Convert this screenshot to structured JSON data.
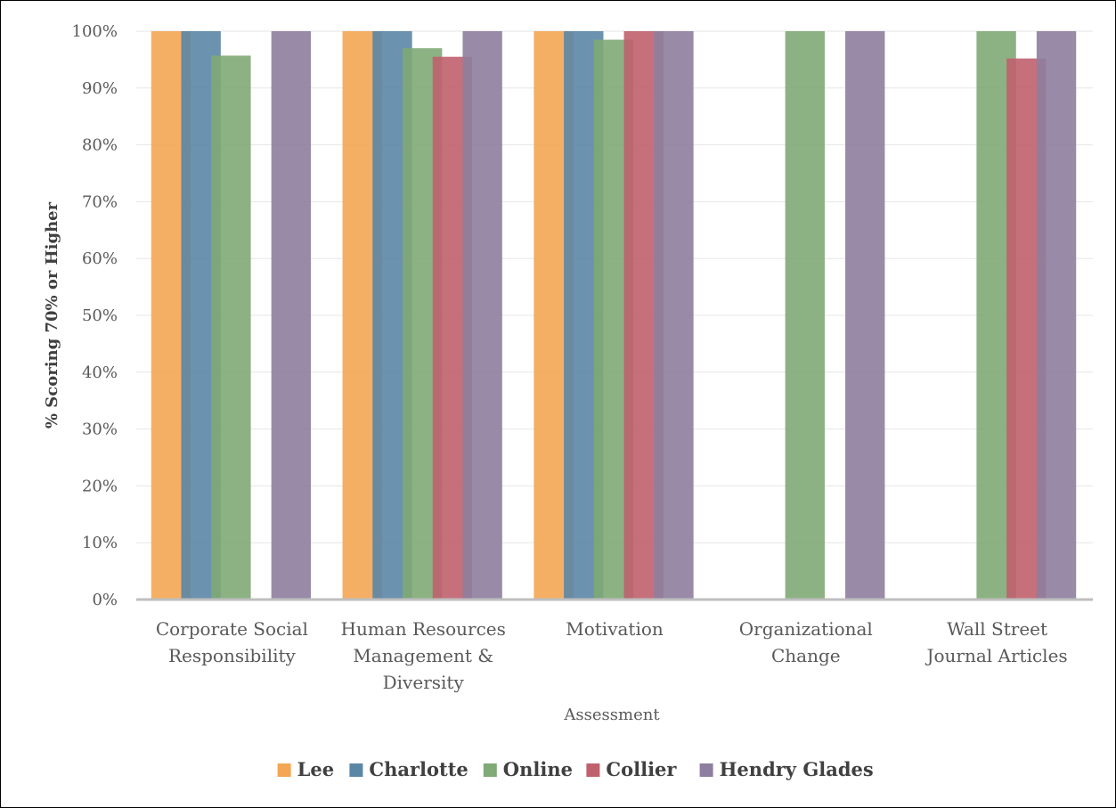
{
  "chart_data": {
    "type": "bar",
    "title": "",
    "xlabel": "Assessment",
    "ylabel": "% Scoring 70% or Higher",
    "ylim": [
      0,
      100
    ],
    "y_ticks": [
      "0%",
      "10%",
      "20%",
      "30%",
      "40%",
      "50%",
      "60%",
      "70%",
      "80%",
      "90%",
      "100%"
    ],
    "categories": [
      [
        "Corporate Social",
        "Responsibility"
      ],
      [
        "Human Resources",
        "Management &",
        "Diversity"
      ],
      [
        "Motivation"
      ],
      [
        "Organizational",
        "Change"
      ],
      [
        "Wall Street",
        "Journal Articles"
      ]
    ],
    "series": [
      {
        "name": "Lee",
        "color": "#F4A653",
        "values": [
          100,
          100,
          100,
          null,
          null
        ]
      },
      {
        "name": "Charlotte",
        "color": "#5B86A6",
        "values": [
          100,
          100,
          100,
          null,
          null
        ]
      },
      {
        "name": "Online",
        "color": "#80AA76",
        "values": [
          95.7,
          97,
          98.5,
          100,
          100
        ]
      },
      {
        "name": "Collier",
        "color": "#C0616E",
        "values": [
          null,
          95.5,
          100,
          null,
          95.2
        ]
      },
      {
        "name": "Hendry Glades",
        "color": "#8E7E9F",
        "values": [
          100,
          100,
          100,
          100,
          100
        ]
      }
    ],
    "grid": true,
    "legend_position": "bottom"
  }
}
